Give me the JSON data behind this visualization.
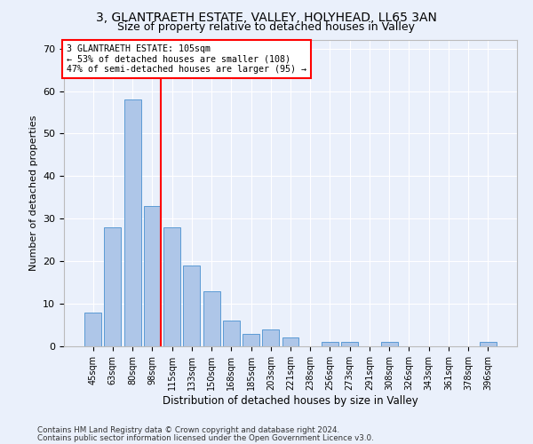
{
  "title": "3, GLANTRAETH ESTATE, VALLEY, HOLYHEAD, LL65 3AN",
  "subtitle": "Size of property relative to detached houses in Valley",
  "xlabel": "Distribution of detached houses by size in Valley",
  "ylabel": "Number of detached properties",
  "categories": [
    "45sqm",
    "63sqm",
    "80sqm",
    "98sqm",
    "115sqm",
    "133sqm",
    "150sqm",
    "168sqm",
    "185sqm",
    "203sqm",
    "221sqm",
    "238sqm",
    "256sqm",
    "273sqm",
    "291sqm",
    "308sqm",
    "326sqm",
    "343sqm",
    "361sqm",
    "378sqm",
    "396sqm"
  ],
  "values": [
    8,
    28,
    58,
    33,
    28,
    19,
    13,
    6,
    3,
    4,
    2,
    0,
    1,
    1,
    0,
    1,
    0,
    0,
    0,
    0,
    1
  ],
  "bar_color": "#aec6e8",
  "bar_edge_color": "#5b9bd5",
  "property_bin_index": 3,
  "annotation_line1": "3 GLANTRAETH ESTATE: 105sqm",
  "annotation_line2": "← 53% of detached houses are smaller (108)",
  "annotation_line3": "47% of semi-detached houses are larger (95) →",
  "annotation_box_color": "#ffffff",
  "annotation_box_edge_color": "#ff0000",
  "ylim": [
    0,
    72
  ],
  "yticks": [
    0,
    10,
    20,
    30,
    40,
    50,
    60,
    70
  ],
  "footnote1": "Contains HM Land Registry data © Crown copyright and database right 2024.",
  "footnote2": "Contains public sector information licensed under the Open Government Licence v3.0.",
  "background_color": "#eaf0fb",
  "grid_color": "#ffffff",
  "title_fontsize": 10,
  "subtitle_fontsize": 9
}
